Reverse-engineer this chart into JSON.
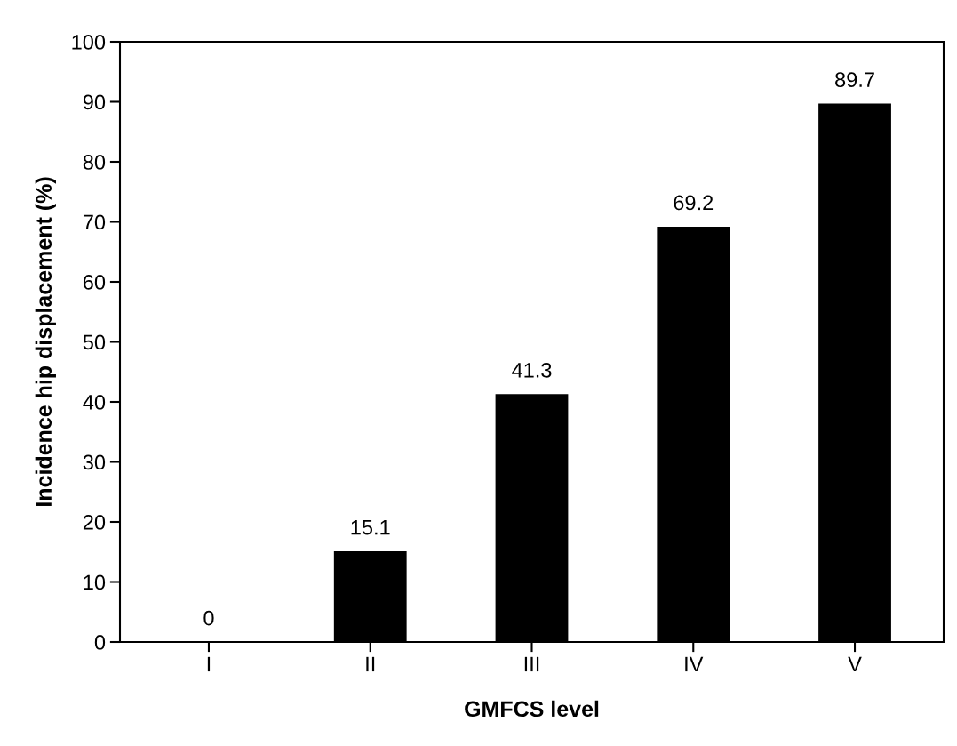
{
  "chart_data": {
    "type": "bar",
    "xlabel": "GMFCS level",
    "ylabel": "Incidence hip displacement (%)",
    "categories": [
      "I",
      "II",
      "III",
      "IV",
      "V"
    ],
    "values": [
      0,
      15.1,
      41.3,
      69.2,
      89.7
    ],
    "color": "#000000",
    "ylim": [
      0,
      100
    ],
    "yticks": [
      0,
      10,
      20,
      30,
      40,
      50,
      60,
      70,
      80,
      90,
      100
    ],
    "data_labels": true,
    "grid": false
  }
}
